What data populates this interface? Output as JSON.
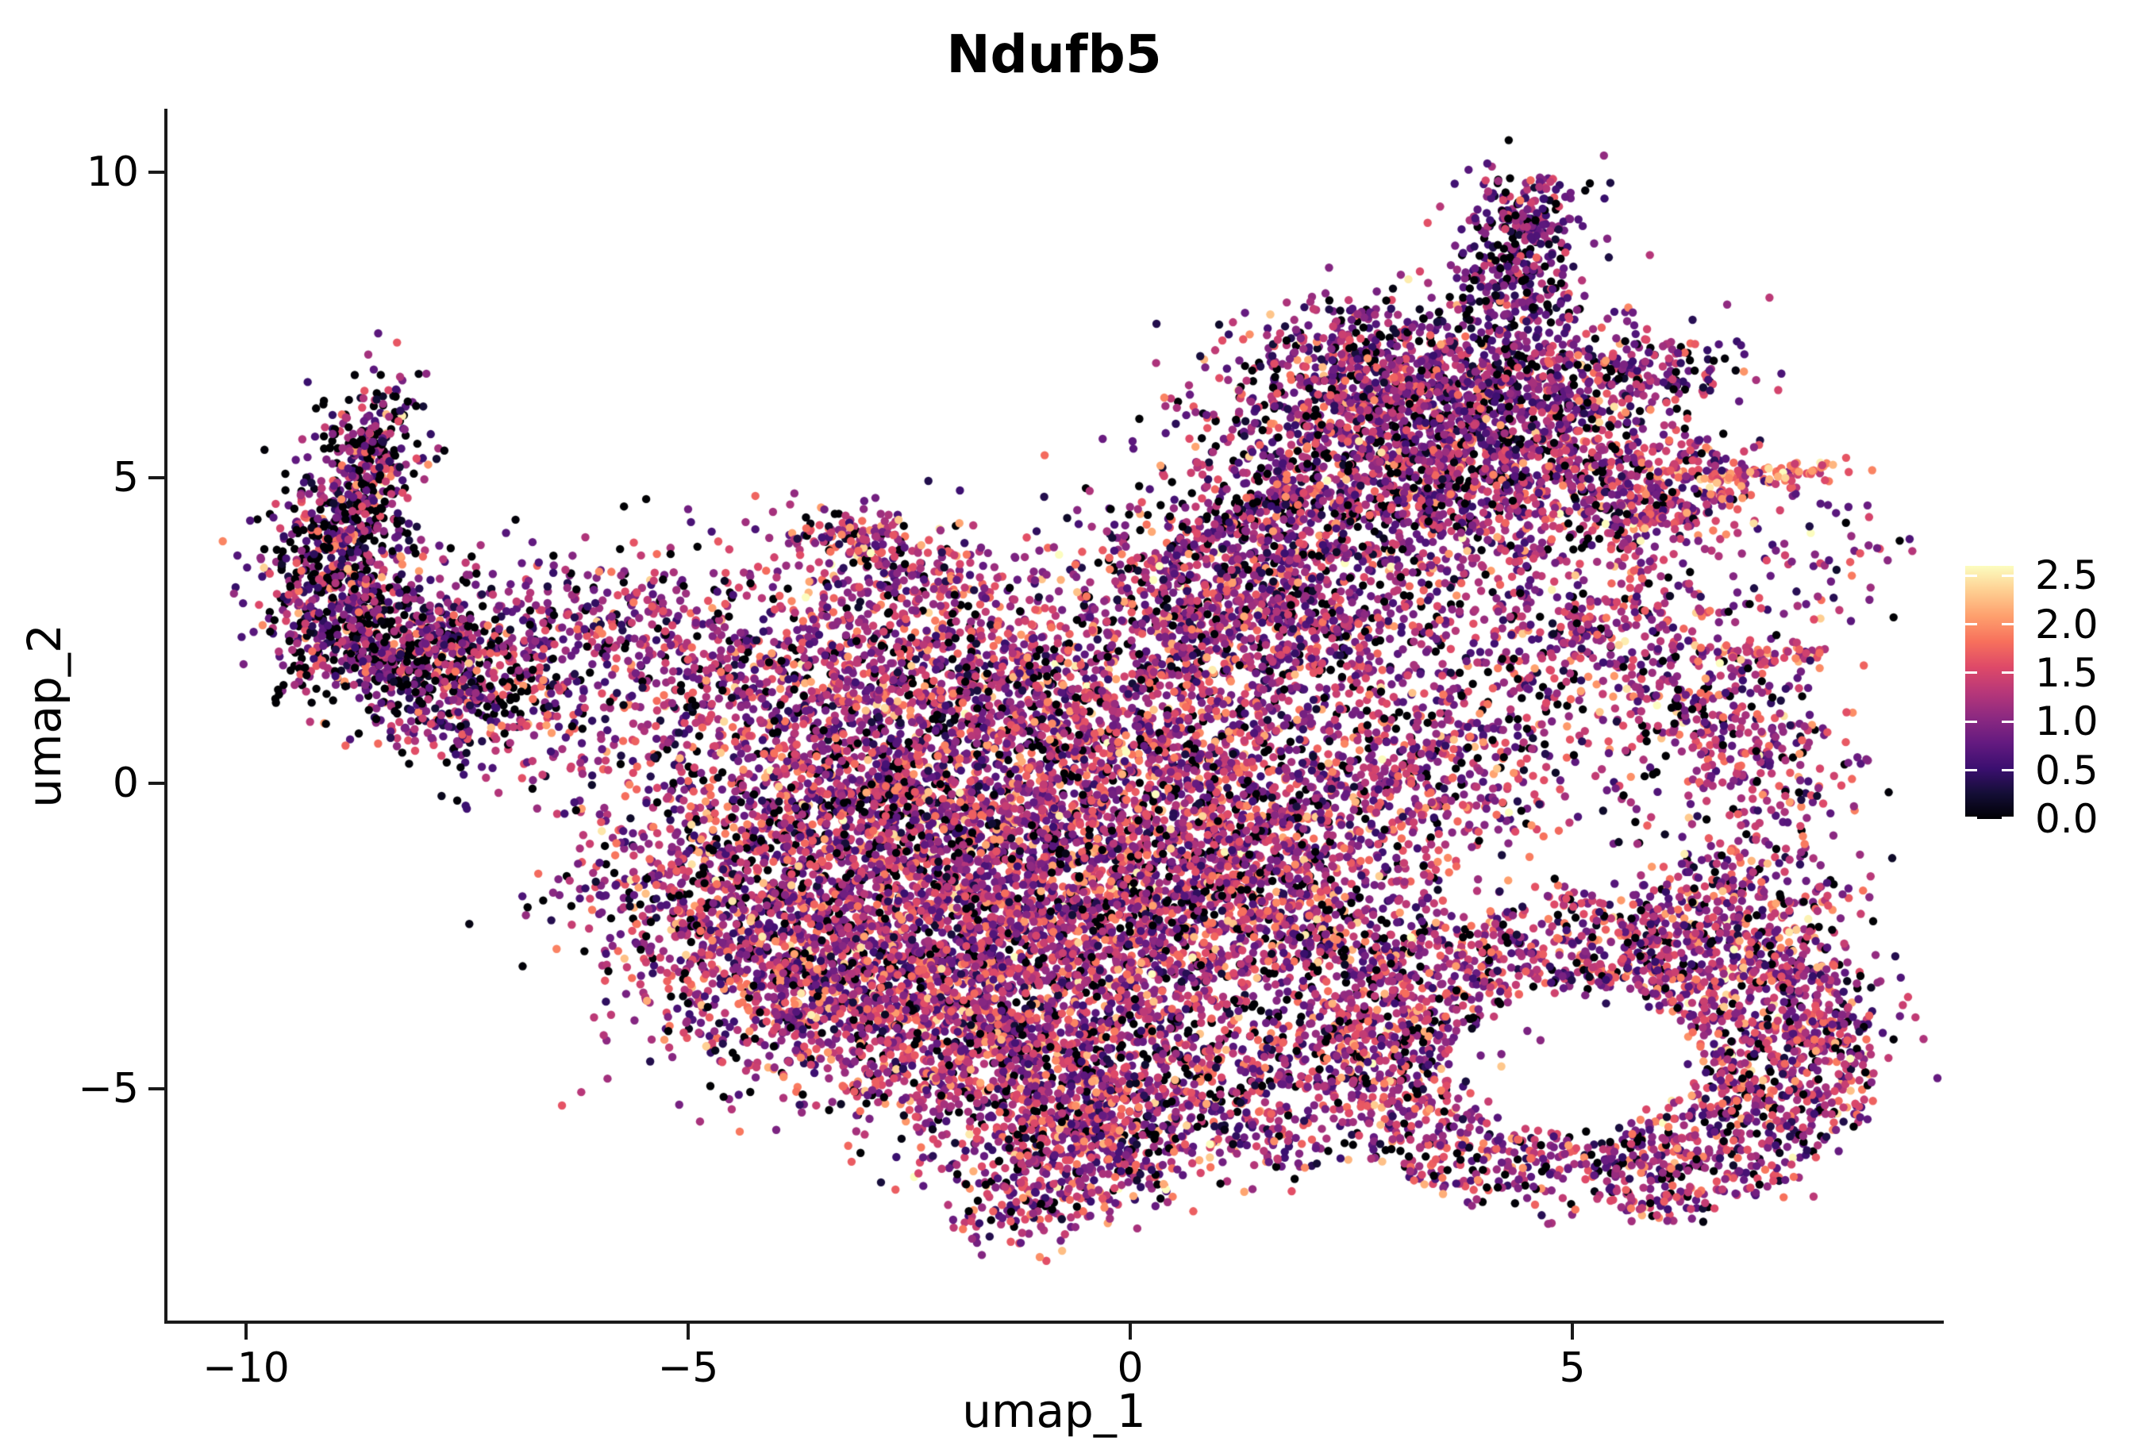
{
  "title": "Ndufb5",
  "axes": {
    "x": {
      "label": "umap_1",
      "tick_labels": [
        "−10",
        "−5",
        "0",
        "5"
      ],
      "tick_values": [
        -10,
        -5,
        0,
        5
      ],
      "range": [
        -10.9,
        9.2
      ]
    },
    "y": {
      "label": "umap_2",
      "tick_labels": [
        "10",
        "5",
        "0",
        "−5"
      ],
      "tick_values": [
        10,
        5,
        0,
        -5
      ],
      "range": [
        -8.8,
        11.0
      ]
    }
  },
  "chart_data": {
    "type": "scatter",
    "title": "Ndufb5",
    "xlabel": "umap_1",
    "ylabel": "umap_2",
    "xlim": [
      -10.9,
      9.2
    ],
    "ylim": [
      -8.8,
      11.0
    ],
    "grid": false,
    "legend_position": "right",
    "point_radius": 5.2,
    "seed": 7,
    "density": 0.8,
    "colorbar": {
      "tick_labels": [
        "2.5",
        "2.0",
        "1.5",
        "1.0",
        "0.5",
        "0.0"
      ],
      "tick_values": [
        2.5,
        2.0,
        1.5,
        1.0,
        0.5,
        0.0
      ],
      "vmin": 0.0,
      "vmax": 2.6,
      "colormap": "magma",
      "stops": [
        [
          0.0,
          "#000004"
        ],
        [
          0.1,
          "#140e36"
        ],
        [
          0.2,
          "#3b0f70"
        ],
        [
          0.3,
          "#641a80"
        ],
        [
          0.4,
          "#8c2981"
        ],
        [
          0.5,
          "#b73779"
        ],
        [
          0.6,
          "#de4968"
        ],
        [
          0.7,
          "#f7705c"
        ],
        [
          0.8,
          "#fe9f6d"
        ],
        [
          0.9,
          "#fece91"
        ],
        [
          1.0,
          "#fcfdbf"
        ]
      ]
    },
    "expression_defaults": {
      "p0": 0.11,
      "mu": 1.2,
      "sd": 0.52
    },
    "clusters": [
      {
        "x": -8.55,
        "y": 5.45,
        "sx": 0.26,
        "sy": 0.62,
        "n": 330,
        "rot": -8,
        "p0": 0.26,
        "mu": 0.95,
        "sd": 0.55
      },
      {
        "x": -8.95,
        "y": 3.6,
        "sx": 0.4,
        "sy": 0.85,
        "n": 700,
        "p0": 0.26,
        "mu": 0.95,
        "sd": 0.55
      },
      {
        "x": -8.35,
        "y": 2.3,
        "sx": 0.65,
        "sy": 0.6,
        "n": 600,
        "rot": -20,
        "p0": 0.24,
        "mu": 1.0,
        "sd": 0.55
      },
      {
        "x": -7.5,
        "y": 1.4,
        "sx": 0.7,
        "sy": 0.55,
        "n": 380,
        "rot": -15,
        "p0": 0.2,
        "mu": 1.0,
        "sd": 0.55
      },
      {
        "x": -6.9,
        "y": 2.4,
        "sx": 0.7,
        "sy": 0.6,
        "n": 260,
        "p0": 0.15,
        "mu": 1.05,
        "sd": 0.5
      },
      {
        "x": -5.9,
        "y": 2.7,
        "sx": 1.0,
        "sy": 0.8,
        "n": 240,
        "p0": 0.12,
        "mu": 1.1,
        "sd": 0.5
      },
      {
        "x": -4.7,
        "y": 2.1,
        "sx": 0.9,
        "sy": 0.7,
        "n": 240,
        "p0": 0.12,
        "mu": 1.1,
        "sd": 0.5
      },
      {
        "x": -5.6,
        "y": 0.7,
        "sx": 0.9,
        "sy": 0.7,
        "n": 150
      },
      {
        "x": -3.2,
        "y": 4.05,
        "sx": 0.38,
        "sy": 0.28,
        "n": 140
      },
      {
        "x": -2.4,
        "y": 3.4,
        "sx": 0.65,
        "sy": 0.5,
        "n": 260
      },
      {
        "x": -2.7,
        "y": 1.8,
        "sx": 1.15,
        "sy": 0.8,
        "n": 800
      },
      {
        "x": -0.9,
        "y": 1.3,
        "sx": 1.1,
        "sy": 0.95,
        "n": 900
      },
      {
        "x": -3.4,
        "y": -0.3,
        "sx": 1.05,
        "sy": 1.05,
        "n": 1000
      },
      {
        "x": -4.8,
        "y": -2.0,
        "sx": 0.75,
        "sy": 0.95,
        "n": 520
      },
      {
        "x": -1.9,
        "y": -1.1,
        "sx": 1.5,
        "sy": 1.3,
        "n": 2200
      },
      {
        "x": -0.2,
        "y": -2.4,
        "sx": 1.25,
        "sy": 1.15,
        "n": 1700
      },
      {
        "x": -2.5,
        "y": -3.6,
        "sx": 1.25,
        "sy": 0.9,
        "n": 1350
      },
      {
        "x": -3.7,
        "y": -2.9,
        "sx": 0.85,
        "sy": 0.75,
        "n": 600
      },
      {
        "x": -1.0,
        "y": -4.9,
        "sx": 1.05,
        "sy": 0.7,
        "n": 950
      },
      {
        "x": -0.3,
        "y": -5.9,
        "sx": 0.7,
        "sy": 0.5,
        "n": 420
      },
      {
        "x": -1.15,
        "y": -6.8,
        "sx": 0.5,
        "sy": 0.42,
        "n": 230
      },
      {
        "x": 1.0,
        "y": -4.7,
        "sx": 0.75,
        "sy": 0.75,
        "n": 380
      },
      {
        "x": 1.7,
        "y": -5.7,
        "sx": 0.45,
        "sy": 0.45,
        "n": 110
      },
      {
        "x": 0.9,
        "y": 0.2,
        "sx": 0.95,
        "sy": 1.35,
        "n": 1100
      },
      {
        "x": 1.9,
        "y": -1.3,
        "sx": 0.85,
        "sy": 0.95,
        "n": 700
      },
      {
        "x": 0.9,
        "y": 3.3,
        "sx": 0.85,
        "sy": 0.8,
        "n": 520,
        "p0": 0.11,
        "mu": 1.1,
        "sd": 0.5
      },
      {
        "x": 2.0,
        "y": 2.9,
        "sx": 1.0,
        "sy": 0.9,
        "n": 850,
        "p0": 0.11,
        "mu": 1.1,
        "sd": 0.5
      },
      {
        "x": 3.4,
        "y": 0.4,
        "sx": 0.8,
        "sy": 0.9,
        "n": 550
      },
      {
        "x": 2.9,
        "y": 5.75,
        "sx": 1.15,
        "sy": 0.7,
        "n": 1050,
        "p0": 0.13,
        "mu": 1.05,
        "sd": 0.5
      },
      {
        "x": 2.65,
        "y": 6.9,
        "sx": 0.7,
        "sy": 0.5,
        "n": 480,
        "p0": 0.13,
        "mu": 1.0,
        "sd": 0.5
      },
      {
        "x": 4.4,
        "y": 6.3,
        "sx": 0.85,
        "sy": 0.65,
        "n": 620,
        "p0": 0.13,
        "mu": 1.05,
        "sd": 0.5
      },
      {
        "x": 4.35,
        "y": 8.0,
        "sx": 0.38,
        "sy": 0.85,
        "n": 440,
        "rot": 6,
        "p0": 0.16,
        "mu": 0.85,
        "sd": 0.45
      },
      {
        "x": 4.55,
        "y": 9.25,
        "sx": 0.34,
        "sy": 0.38,
        "n": 170,
        "p0": 0.16,
        "mu": 0.85,
        "sd": 0.45
      },
      {
        "x": 3.9,
        "y": 4.6,
        "sx": 1.05,
        "sy": 0.65,
        "n": 700,
        "p0": 0.12,
        "mu": 1.1,
        "sd": 0.5
      },
      {
        "x": 2.0,
        "y": 4.7,
        "sx": 0.55,
        "sy": 0.5,
        "n": 260
      },
      {
        "x": 1.0,
        "y": 2.6,
        "sx": 0.3,
        "sy": 0.4,
        "n": 60
      },
      {
        "x": 5.75,
        "y": 4.85,
        "sx": 0.75,
        "sy": 0.5,
        "n": 420,
        "p0": 0.08,
        "mu": 1.3,
        "sd": 0.5
      },
      {
        "x": 5.9,
        "y": 6.8,
        "sx": 0.5,
        "sy": 0.4,
        "n": 150,
        "p0": 0.12,
        "mu": 1.0,
        "sd": 0.5
      },
      {
        "x": 5.3,
        "y": 2.4,
        "sx": 0.85,
        "sy": 0.85,
        "n": 520
      },
      {
        "x": 6.5,
        "y": 1.1,
        "sx": 0.65,
        "sy": 0.85,
        "n": 350
      },
      {
        "x": 7.3,
        "y": 0.2,
        "sx": 0.45,
        "sy": 0.55,
        "n": 130
      },
      {
        "x": 8.0,
        "y": 3.7,
        "sx": 0.4,
        "sy": 0.55,
        "n": 60
      },
      {
        "x": 6.85,
        "y": -2.05,
        "sx": 0.7,
        "sy": 0.75,
        "n": 450
      },
      {
        "x": 7.85,
        "y": -4.0,
        "sx": 0.5,
        "sy": 0.85,
        "n": 280
      },
      {
        "x": 2.3,
        "y": -2.7,
        "sx": 0.8,
        "sy": 0.7,
        "n": 300
      },
      {
        "x": 2.9,
        "y": -4.6,
        "sx": 0.6,
        "sy": 0.6,
        "n": 150
      }
    ],
    "arcs": [
      {
        "cx": 5.0,
        "cy": -4.55,
        "rIn": 1.3,
        "rW": 1.5,
        "a1": -78,
        "a2": 95,
        "ex": 1.18,
        "n": 1500,
        "p0": 0.1,
        "mu": 1.18,
        "sd": 0.5
      },
      {
        "cx": 5.0,
        "cy": -4.55,
        "rIn": 1.25,
        "rW": 1.3,
        "a1": 95,
        "a2": 195,
        "ex": 1.18,
        "n": 650,
        "p0": 0.1,
        "mu": 1.18,
        "sd": 0.5
      },
      {
        "cx": 5.0,
        "cy": -4.55,
        "rIn": 1.25,
        "rW": 1.2,
        "a1": 195,
        "a2": 285,
        "ex": 1.18,
        "n": 450,
        "p0": 0.1,
        "mu": 1.18,
        "sd": 0.5
      }
    ],
    "lines": [
      {
        "x1": 6.3,
        "y1": 5.0,
        "x2": 7.85,
        "y2": 5.1,
        "jx": 0.06,
        "jy": 0.1,
        "n": 95,
        "p0": 0.02,
        "mu": 1.85,
        "sd": 0.35
      },
      {
        "x1": 0.3,
        "y1": 3.65,
        "x2": 1.95,
        "y2": 4.8,
        "jx": 0.08,
        "jy": 0.13,
        "n": 130,
        "p0": 0.1,
        "mu": 1.2,
        "sd": 0.5
      },
      {
        "x1": 6.6,
        "y1": 2.05,
        "x2": 7.8,
        "y2": 2.15,
        "jx": 0.05,
        "jy": 0.1,
        "n": 55,
        "p0": 0.05,
        "mu": 1.5,
        "sd": 0.45
      },
      {
        "x1": 5.6,
        "y1": 4.25,
        "x2": 6.9,
        "y2": 4.65,
        "jx": 0.06,
        "jy": 0.12,
        "n": 70,
        "p0": 0.1,
        "mu": 1.25,
        "sd": 0.5
      }
    ]
  }
}
